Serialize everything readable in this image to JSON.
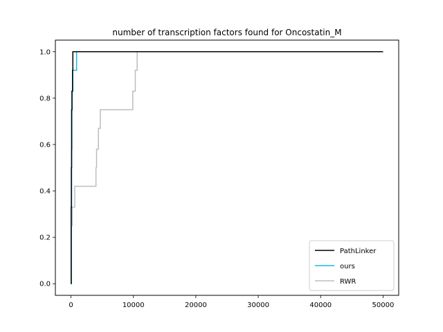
{
  "chart_data": {
    "type": "line",
    "title": "number of transcription factors found for Oncostatin_M",
    "xlabel": "",
    "ylabel": "",
    "xlim": [
      -2500,
      52500
    ],
    "ylim": [
      -0.05,
      1.05
    ],
    "x_ticks": [
      0,
      10000,
      20000,
      30000,
      40000,
      50000
    ],
    "x_tick_labels": [
      "0",
      "10000",
      "20000",
      "30000",
      "40000",
      "50000"
    ],
    "y_ticks": [
      0.0,
      0.2,
      0.4,
      0.6,
      0.8,
      1.0
    ],
    "y_tick_labels": [
      "0.0",
      "0.2",
      "0.4",
      "0.6",
      "0.8",
      "1.0"
    ],
    "grid": false,
    "legend_position": "lower-right",
    "series": [
      {
        "name": "PathLinker",
        "color": "#000000",
        "step": true,
        "points": [
          [
            0,
            0.0
          ],
          [
            30,
            0.33
          ],
          [
            60,
            0.5
          ],
          [
            100,
            0.75
          ],
          [
            150,
            0.83
          ],
          [
            250,
            0.92
          ],
          [
            300,
            1.0
          ],
          [
            50000,
            1.0
          ]
        ]
      },
      {
        "name": "ours",
        "color": "#1ab7e6",
        "step": true,
        "points": [
          [
            0,
            0.0
          ],
          [
            50,
            0.33
          ],
          [
            100,
            0.58
          ],
          [
            150,
            0.75
          ],
          [
            200,
            0.83
          ],
          [
            300,
            0.92
          ],
          [
            900,
            1.0
          ],
          [
            50000,
            1.0
          ]
        ]
      },
      {
        "name": "RWR",
        "color": "#bdbdbd",
        "step": true,
        "points": [
          [
            0,
            0.0
          ],
          [
            80,
            0.25
          ],
          [
            200,
            0.33
          ],
          [
            600,
            0.42
          ],
          [
            4000,
            0.5
          ],
          [
            4100,
            0.58
          ],
          [
            4400,
            0.67
          ],
          [
            4700,
            0.75
          ],
          [
            9900,
            0.83
          ],
          [
            10300,
            0.92
          ],
          [
            10600,
            1.0
          ],
          [
            50000,
            1.0
          ]
        ]
      }
    ]
  }
}
